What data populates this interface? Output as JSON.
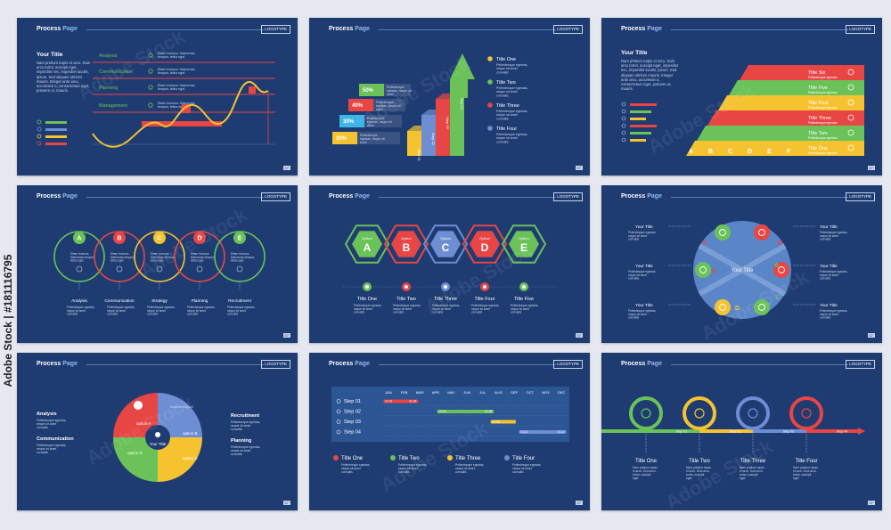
{
  "header": {
    "title_a": "Process ",
    "title_b": "Page",
    "logo": "LOGOTYPE",
    "page_no": "07"
  },
  "slide1": {
    "title": "Your Title",
    "body": "Nam pretium turpis et arcu. Duis arcu tortor, suscipit eget, imperdiet nec, imperdiet iaculis, ipsum. Sed aliquam ultrices mauris. Integer ante arcu, accumsan a, consectetuer eget, posuere ut, mauris.",
    "items": [
      {
        "label": "Analysis",
        "text": "Etiam rhoncus. Maecenas tempus, tellus eget",
        "color": "#6ac259"
      },
      {
        "label": "Communication",
        "text": "Etiam rhoncus. Maecenas tempus, tellus eget",
        "color": "#6ac259"
      },
      {
        "label": "Planning",
        "text": "Etiam rhoncus. Maecenas tempus, tellus eget",
        "color": "#6ac259"
      },
      {
        "label": "Management",
        "text": "Etiam rhoncus. Maecenas tempus, tellus eget",
        "color": "#6ac259"
      }
    ],
    "icons": [
      "user-icon",
      "group-icon",
      "pencil-icon",
      "bulb-icon"
    ]
  },
  "slide2": {
    "steps": [
      {
        "pct": "20%",
        "name": "Step 01"
      },
      {
        "pct": "30%",
        "name": "Step 02"
      },
      {
        "pct": "40%",
        "name": "Step 03"
      },
      {
        "pct": "50%",
        "name": "Step 04"
      }
    ],
    "legend": [
      {
        "title": "Title One",
        "text": "Pellentesque egestas, neque sit amet convallis",
        "color": "#f5c330"
      },
      {
        "title": "Title Two",
        "text": "Pellentesque egestas, neque sit amet convallis",
        "color": "#6ac259"
      },
      {
        "title": "Title Three",
        "text": "Pellentesque egestas, neque sit amet convallis",
        "color": "#e84545"
      },
      {
        "title": "Title Four",
        "text": "Pellentesque egestas, neque sit amet convallis",
        "color": "#6e8ed4"
      }
    ]
  },
  "slide3": {
    "title": "Your Title",
    "body": "Nam pretium turpis et arcu. Duis arcu tortor, suscipit eget, imperdiet nec, imperdiet iaculis, ipsum. Sed aliquam ultrices mauris. Integer ante arcu, accumsan a, consectetuer eget, posuere ut, mauris.",
    "rows": [
      {
        "title": "Title Six",
        "text": "Pellentesque egestas",
        "color": "#e84545"
      },
      {
        "title": "Title Five",
        "text": "Pellentesque egestas",
        "color": "#6ac259"
      },
      {
        "title": "Title Four",
        "text": "Pellentesque egestas",
        "color": "#f5c330"
      },
      {
        "title": "Title Three",
        "text": "Pellentesque egestas",
        "color": "#e84545"
      },
      {
        "title": "Title Two",
        "text": "Pellentesque egestas",
        "color": "#6ac259"
      },
      {
        "title": "Title One",
        "text": "Pellentesque egestas",
        "color": "#f5c330"
      }
    ],
    "letters": [
      "A",
      "B",
      "C",
      "D",
      "E",
      "F"
    ]
  },
  "slide4": {
    "circles": [
      {
        "letter": "A",
        "name": "Analysis",
        "color": "#6ac259"
      },
      {
        "letter": "B",
        "name": "Communication",
        "color": "#e84545"
      },
      {
        "letter": "C",
        "name": "Strategy",
        "color": "#f5c330"
      },
      {
        "letter": "D",
        "name": "Planning",
        "color": "#e84545"
      },
      {
        "letter": "E",
        "name": "Recruitment",
        "color": "#6ac259"
      }
    ],
    "inner_text": "Etiam rhoncus. Maecenas tempus, tellus eget",
    "desc": "Pellentesque egestas, neque sit amet convallis"
  },
  "slide5": {
    "hexes": [
      {
        "opt": "Option",
        "letter": "A",
        "title": "Title One",
        "color": "#6ac259"
      },
      {
        "opt": "Option",
        "letter": "B",
        "title": "Title Two",
        "color": "#e84545"
      },
      {
        "opt": "Option",
        "letter": "C",
        "title": "Title Three",
        "color": "#6e8ed4"
      },
      {
        "opt": "Option",
        "letter": "D",
        "title": "Title Four",
        "color": "#e84545"
      },
      {
        "opt": "Option",
        "letter": "E",
        "title": "Title Five",
        "color": "#6ac259"
      }
    ],
    "desc": "Pellentesque egestas, neque sit amet convallis"
  },
  "slide6": {
    "center": "Your Title",
    "side": "Your Title",
    "side_text": "Pellentesque egestas, neque sit amet convallis",
    "letters": [
      "A",
      "B",
      "C",
      "D",
      "E",
      "F"
    ]
  },
  "slide7": {
    "center": "Your Title",
    "left": [
      {
        "title": "Analysis",
        "text": "Pellentesque egestas, neque sit amet convallis"
      },
      {
        "title": "Communication",
        "text": "Pellentesque egestas, neque sit amet convallis"
      }
    ],
    "right": [
      {
        "title": "Recruitment",
        "text": "Pellentesque egestas, neque sit amet convallis"
      },
      {
        "title": "Planning",
        "text": "Pellentesque egestas, neque sit amet convallis"
      }
    ],
    "options": [
      {
        "label": "option A",
        "color": "#e84545"
      },
      {
        "label": "option B",
        "color": "#6e8ed4"
      },
      {
        "label": "option C",
        "color": "#f5c330"
      },
      {
        "label": "option D",
        "color": "#6ac259"
      }
    ]
  },
  "slide8": {
    "months": [
      "JAN",
      "FEB",
      "MAR",
      "APR",
      "MAY",
      "JUN",
      "JUL",
      "AUG",
      "SEP",
      "OCT",
      "NOV",
      "DEC"
    ],
    "steps": [
      {
        "name": "Step 01",
        "from": "01.01",
        "to": "01.04",
        "color": "#e84545",
        "start": 0.2,
        "span": 2.2
      },
      {
        "name": "Step 02",
        "from": "01.04",
        "to": "01.08",
        "color": "#6ac259",
        "start": 3.6,
        "span": 3.6
      },
      {
        "name": "Step 03",
        "from": "01.08",
        "to": "",
        "color": "#f5c330",
        "start": 7.0,
        "span": 1.6
      },
      {
        "name": "Step 04",
        "from": "01.10",
        "to": "01.12",
        "color": "#6e8ed4",
        "start": 8.8,
        "span": 3.0
      }
    ],
    "legend": [
      {
        "title": "Title One",
        "text": "Pellentesque egestas, neque sit amet convallis",
        "color": "#e84545"
      },
      {
        "title": "Title Two",
        "text": "Pellentesque egestas, neque sit amet convallis",
        "color": "#6ac259"
      },
      {
        "title": "Title Three",
        "text": "Pellentesque egestas, neque sit amet convallis",
        "color": "#f5c330"
      },
      {
        "title": "Title Four",
        "text": "Pellentesque egestas, neque sit amet convallis",
        "color": "#6e8ed4"
      }
    ]
  },
  "slide9": {
    "steps": [
      {
        "step": "Step 01",
        "title": "Title One",
        "color": "#6ac259",
        "icon": "clock-icon"
      },
      {
        "step": "Step 02",
        "title": "Title Two",
        "color": "#f5c330",
        "icon": "money-bag-icon"
      },
      {
        "step": "Step 03",
        "title": "Title Three",
        "color": "#6e8ed4",
        "icon": "coins-icon"
      },
      {
        "step": "Step 04",
        "title": "Title Four",
        "color": "#e84545",
        "icon": "search-icon"
      }
    ],
    "desc": "Nam pretium turpis et arcu. Duis arcu tortor, suscipit eget"
  },
  "credit": "Adobe Stock | #181116795",
  "watermark": "Adobe Stock"
}
